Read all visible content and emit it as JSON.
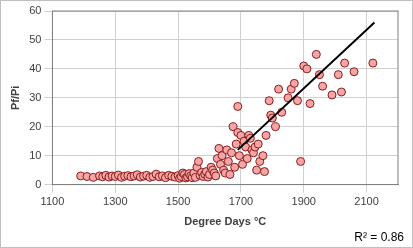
{
  "chart_data": {
    "type": "scatter",
    "x_label": "Degree Days °C",
    "y_label": "Pf/Pi",
    "annotation": "R² = 0.86",
    "xlim": [
      1100,
      2200
    ],
    "xticks": [
      1100,
      1300,
      1500,
      1700,
      1900,
      2100
    ],
    "ylim": [
      0,
      60
    ],
    "yticks": [
      0,
      10,
      20,
      30,
      40,
      50,
      60
    ],
    "grid": true,
    "series": [
      {
        "type": "scatter",
        "color": "#f4a6a6",
        "marker": "circle",
        "x": [
          1190,
          1210,
          1230,
          1250,
          1260,
          1270,
          1280,
          1290,
          1300,
          1310,
          1320,
          1330,
          1340,
          1350,
          1360,
          1370,
          1380,
          1390,
          1400,
          1410,
          1420,
          1430,
          1440,
          1450,
          1460,
          1470,
          1480,
          1490,
          1500,
          1505,
          1510,
          1515,
          1520,
          1525,
          1530,
          1535,
          1540,
          1545,
          1550,
          1555,
          1560,
          1565,
          1570,
          1575,
          1580,
          1585,
          1590,
          1595,
          1600,
          1605,
          1610,
          1615,
          1620,
          1625,
          1630,
          1635,
          1640,
          1645,
          1650,
          1655,
          1660,
          1665,
          1670,
          1675,
          1680,
          1685,
          1690,
          1690,
          1695,
          1700,
          1705,
          1710,
          1715,
          1720,
          1725,
          1730,
          1735,
          1740,
          1745,
          1750,
          1755,
          1760,
          1770,
          1775,
          1780,
          1790,
          1795,
          1800,
          1810,
          1820,
          1830,
          1850,
          1860,
          1870,
          1880,
          1890,
          1900,
          1910,
          1920,
          1940,
          1950,
          1960,
          1990,
          2010,
          2020,
          2030,
          2060,
          2120
        ],
        "values": [
          3,
          2.8,
          2.5,
          3,
          2.7,
          3.2,
          2.6,
          3,
          2.8,
          3.3,
          2.5,
          2.9,
          3.1,
          2.7,
          3,
          3.4,
          2.6,
          2.9,
          3.2,
          2.5,
          2.8,
          3.6,
          2.7,
          3,
          2.4,
          3.2,
          2.9,
          2.6,
          3.1,
          2.2,
          2.8,
          4,
          3.5,
          2.3,
          2.7,
          3.8,
          3,
          2.4,
          4,
          2.5,
          6,
          8,
          3.2,
          4.2,
          2.8,
          3.6,
          4.5,
          2.6,
          3.5,
          6,
          5,
          4,
          3,
          9,
          12.5,
          7,
          10,
          5,
          4,
          12,
          8,
          3.5,
          11,
          20,
          6,
          14,
          27,
          18,
          10,
          17,
          7,
          15,
          13,
          9,
          17,
          16,
          12,
          11,
          13,
          5,
          14,
          8,
          10,
          4.5,
          17,
          29,
          24,
          23,
          20,
          33,
          25,
          30,
          33,
          35,
          29,
          8,
          41,
          40,
          28,
          45,
          38,
          34,
          31,
          38,
          32,
          42,
          39,
          42
        ]
      },
      {
        "type": "line",
        "color": "#000000",
        "line_style": "solid",
        "x": [
          1690,
          2125
        ],
        "values": [
          12,
          56
        ]
      }
    ]
  }
}
